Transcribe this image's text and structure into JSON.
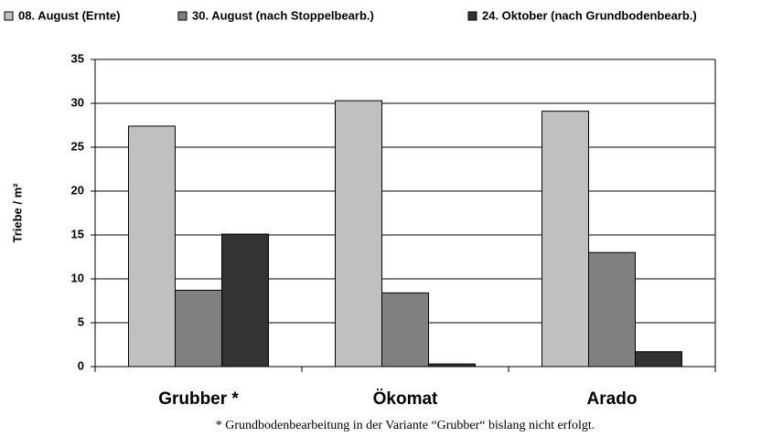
{
  "chart_data": {
    "type": "bar",
    "categories": [
      "Grubber *",
      "Ökomat",
      "Arado"
    ],
    "series": [
      {
        "name": "08. August (Ernte)",
        "color": "#c0c0c0",
        "values": [
          27.4,
          30.3,
          29.1
        ]
      },
      {
        "name": "30. August (nach Stoppelbearb.)",
        "color": "#808080",
        "values": [
          8.7,
          8.4,
          13.0
        ]
      },
      {
        "name": "24. Oktober (nach Grundbodenbearb.)",
        "color": "#333333",
        "values": [
          15.1,
          0.3,
          1.7
        ]
      }
    ],
    "ylabel": "Triebe / m²",
    "footnote": "* Grundbodenbearbeitung in der Variante “Grubber“ bislang nicht erfolgt.",
    "ylim": [
      0,
      35
    ],
    "yticks": [
      0,
      5,
      10,
      15,
      20,
      25,
      30,
      35
    ],
    "grid": true,
    "legend": "top"
  }
}
